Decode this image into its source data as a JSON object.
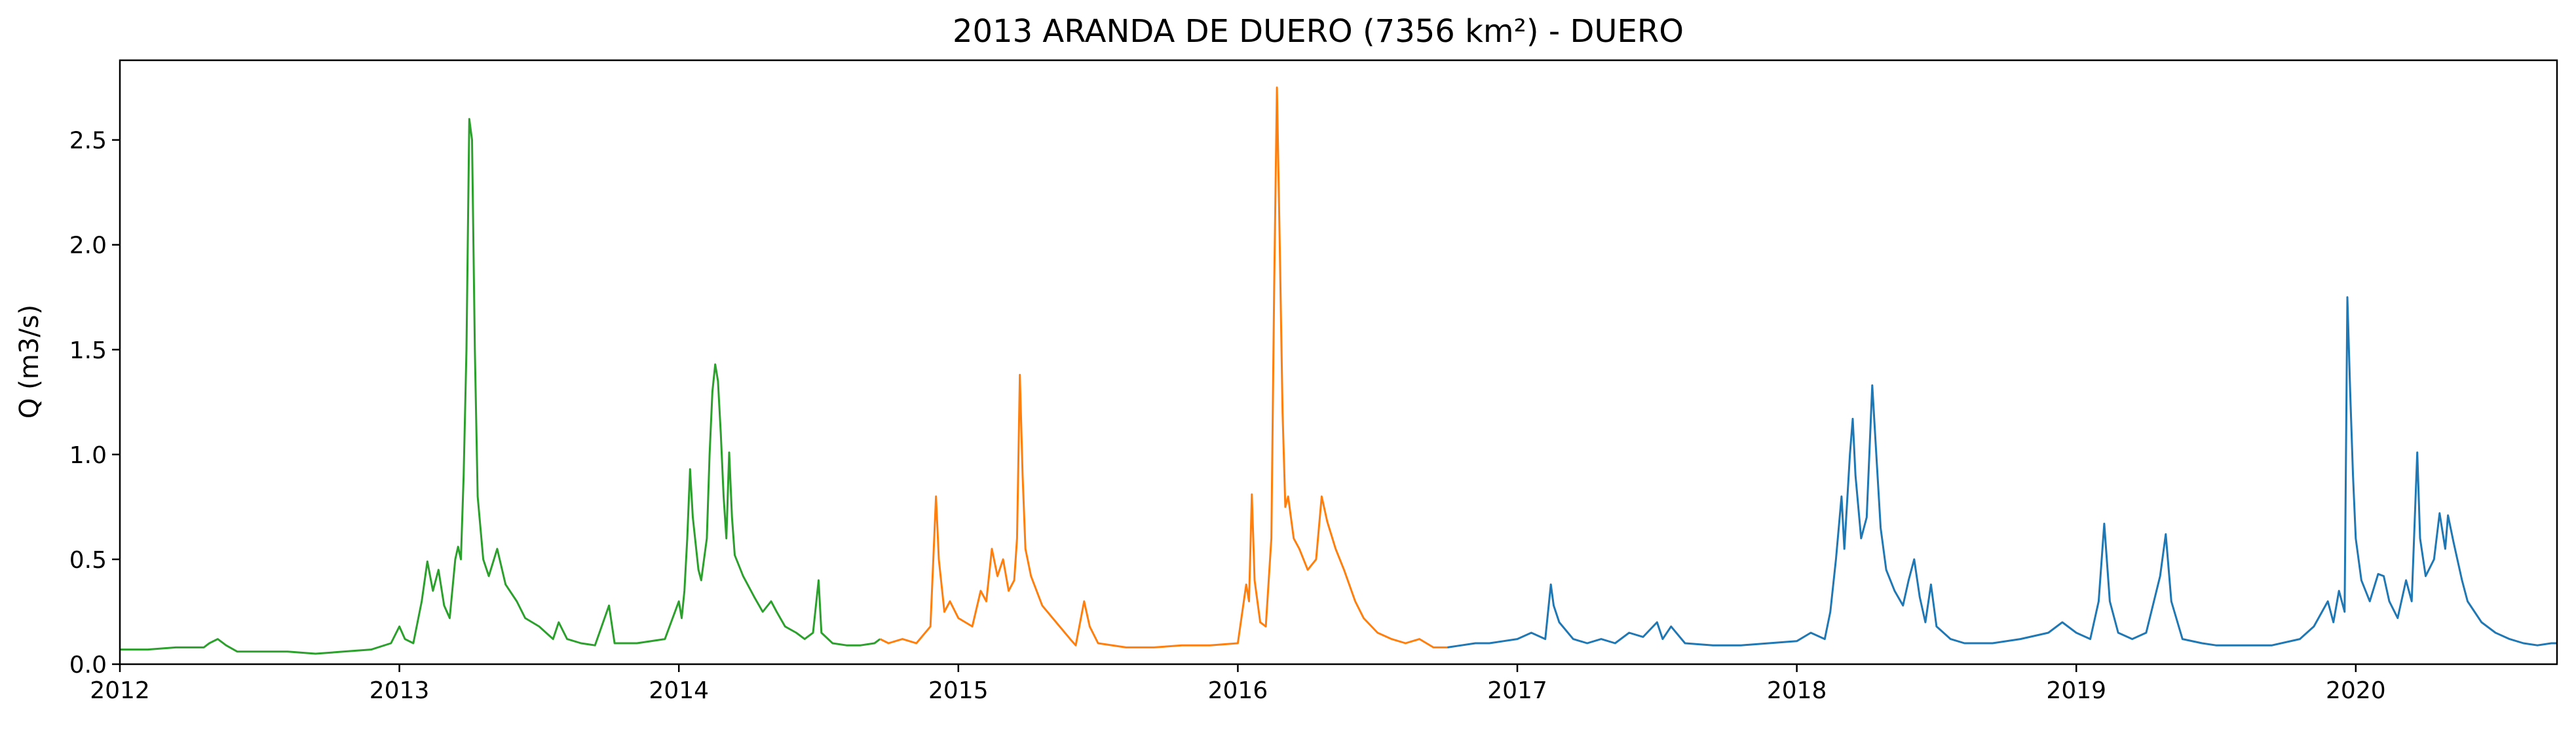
{
  "chart_data": {
    "type": "line",
    "title": "2013 ARANDA DE DUERO (7356 km²) - DUERO",
    "xlabel": "",
    "ylabel": "Q (m3/s)",
    "xlim": [
      2012.0,
      2020.72
    ],
    "ylim": [
      0.0,
      2.88
    ],
    "xticks": [
      2012,
      2013,
      2014,
      2015,
      2016,
      2017,
      2018,
      2019,
      2020
    ],
    "xtick_labels": [
      "2012",
      "2013",
      "2014",
      "2015",
      "2016",
      "2017",
      "2018",
      "2019",
      "2020"
    ],
    "yticks": [
      0.0,
      0.5,
      1.0,
      1.5,
      2.0,
      2.5
    ],
    "ytick_labels": [
      "0.0",
      "0.5",
      "1.0",
      "1.5",
      "2.0",
      "2.5"
    ],
    "grid": false,
    "legend": "none",
    "series": [
      {
        "color": "#2ca02c",
        "points": [
          [
            2012.0,
            0.07
          ],
          [
            2012.1,
            0.07
          ],
          [
            2012.2,
            0.08
          ],
          [
            2012.3,
            0.08
          ],
          [
            2012.32,
            0.1
          ],
          [
            2012.35,
            0.12
          ],
          [
            2012.38,
            0.09
          ],
          [
            2012.42,
            0.06
          ],
          [
            2012.5,
            0.06
          ],
          [
            2012.6,
            0.06
          ],
          [
            2012.7,
            0.05
          ],
          [
            2012.8,
            0.06
          ],
          [
            2012.9,
            0.07
          ],
          [
            2012.97,
            0.1
          ],
          [
            2013.0,
            0.18
          ],
          [
            2013.02,
            0.12
          ],
          [
            2013.05,
            0.1
          ],
          [
            2013.08,
            0.3
          ],
          [
            2013.1,
            0.49
          ],
          [
            2013.12,
            0.35
          ],
          [
            2013.14,
            0.45
          ],
          [
            2013.16,
            0.28
          ],
          [
            2013.18,
            0.22
          ],
          [
            2013.2,
            0.5
          ],
          [
            2013.21,
            0.56
          ],
          [
            2013.22,
            0.5
          ],
          [
            2013.23,
            0.9
          ],
          [
            2013.24,
            1.5
          ],
          [
            2013.25,
            2.6
          ],
          [
            2013.26,
            2.5
          ],
          [
            2013.27,
            1.5
          ],
          [
            2013.28,
            0.8
          ],
          [
            2013.3,
            0.5
          ],
          [
            2013.32,
            0.42
          ],
          [
            2013.35,
            0.55
          ],
          [
            2013.38,
            0.38
          ],
          [
            2013.42,
            0.3
          ],
          [
            2013.45,
            0.22
          ],
          [
            2013.5,
            0.18
          ],
          [
            2013.55,
            0.12
          ],
          [
            2013.57,
            0.2
          ],
          [
            2013.6,
            0.12
          ],
          [
            2013.65,
            0.1
          ],
          [
            2013.7,
            0.09
          ],
          [
            2013.75,
            0.28
          ],
          [
            2013.77,
            0.1
          ],
          [
            2013.85,
            0.1
          ],
          [
            2013.95,
            0.12
          ],
          [
            2014.0,
            0.3
          ],
          [
            2014.01,
            0.22
          ],
          [
            2014.02,
            0.35
          ],
          [
            2014.03,
            0.6
          ],
          [
            2014.04,
            0.93
          ],
          [
            2014.05,
            0.7
          ],
          [
            2014.07,
            0.45
          ],
          [
            2014.08,
            0.4
          ],
          [
            2014.09,
            0.5
          ],
          [
            2014.1,
            0.6
          ],
          [
            2014.11,
            1.0
          ],
          [
            2014.12,
            1.3
          ],
          [
            2014.13,
            1.43
          ],
          [
            2014.14,
            1.35
          ],
          [
            2014.15,
            1.1
          ],
          [
            2014.16,
            0.8
          ],
          [
            2014.17,
            0.6
          ],
          [
            2014.18,
            1.01
          ],
          [
            2014.19,
            0.7
          ],
          [
            2014.2,
            0.52
          ],
          [
            2014.23,
            0.42
          ],
          [
            2014.27,
            0.32
          ],
          [
            2014.3,
            0.25
          ],
          [
            2014.33,
            0.3
          ],
          [
            2014.35,
            0.25
          ],
          [
            2014.38,
            0.18
          ],
          [
            2014.42,
            0.15
          ],
          [
            2014.45,
            0.12
          ],
          [
            2014.48,
            0.15
          ],
          [
            2014.5,
            0.4
          ],
          [
            2014.51,
            0.15
          ],
          [
            2014.55,
            0.1
          ],
          [
            2014.6,
            0.09
          ],
          [
            2014.65,
            0.09
          ],
          [
            2014.7,
            0.1
          ],
          [
            2014.72,
            0.12
          ]
        ]
      },
      {
        "color": "#ff7f0e",
        "points": [
          [
            2014.72,
            0.12
          ],
          [
            2014.75,
            0.1
          ],
          [
            2014.8,
            0.12
          ],
          [
            2014.85,
            0.1
          ],
          [
            2014.9,
            0.18
          ],
          [
            2014.92,
            0.8
          ],
          [
            2014.93,
            0.5
          ],
          [
            2014.95,
            0.25
          ],
          [
            2014.97,
            0.3
          ],
          [
            2015.0,
            0.22
          ],
          [
            2015.05,
            0.18
          ],
          [
            2015.08,
            0.35
          ],
          [
            2015.1,
            0.3
          ],
          [
            2015.12,
            0.55
          ],
          [
            2015.14,
            0.42
          ],
          [
            2015.16,
            0.5
          ],
          [
            2015.18,
            0.35
          ],
          [
            2015.2,
            0.4
          ],
          [
            2015.21,
            0.6
          ],
          [
            2015.22,
            1.38
          ],
          [
            2015.23,
            0.9
          ],
          [
            2015.24,
            0.55
          ],
          [
            2015.26,
            0.42
          ],
          [
            2015.3,
            0.28
          ],
          [
            2015.35,
            0.2
          ],
          [
            2015.4,
            0.12
          ],
          [
            2015.42,
            0.09
          ],
          [
            2015.45,
            0.3
          ],
          [
            2015.47,
            0.18
          ],
          [
            2015.5,
            0.1
          ],
          [
            2015.6,
            0.08
          ],
          [
            2015.7,
            0.08
          ],
          [
            2015.8,
            0.09
          ],
          [
            2015.9,
            0.09
          ],
          [
            2016.0,
            0.1
          ],
          [
            2016.03,
            0.38
          ],
          [
            2016.04,
            0.3
          ],
          [
            2016.05,
            0.81
          ],
          [
            2016.06,
            0.4
          ],
          [
            2016.08,
            0.2
          ],
          [
            2016.1,
            0.18
          ],
          [
            2016.12,
            0.6
          ],
          [
            2016.13,
            1.8
          ],
          [
            2016.14,
            2.75
          ],
          [
            2016.15,
            2.0
          ],
          [
            2016.16,
            1.2
          ],
          [
            2016.17,
            0.75
          ],
          [
            2016.18,
            0.8
          ],
          [
            2016.2,
            0.6
          ],
          [
            2016.22,
            0.55
          ],
          [
            2016.25,
            0.45
          ],
          [
            2016.28,
            0.5
          ],
          [
            2016.3,
            0.8
          ],
          [
            2016.32,
            0.68
          ],
          [
            2016.35,
            0.55
          ],
          [
            2016.38,
            0.45
          ],
          [
            2016.42,
            0.3
          ],
          [
            2016.45,
            0.22
          ],
          [
            2016.5,
            0.15
          ],
          [
            2016.55,
            0.12
          ],
          [
            2016.6,
            0.1
          ],
          [
            2016.65,
            0.12
          ],
          [
            2016.7,
            0.08
          ],
          [
            2016.75,
            0.08
          ]
        ]
      },
      {
        "color": "#1f77b4",
        "points": [
          [
            2016.75,
            0.08
          ],
          [
            2016.8,
            0.09
          ],
          [
            2016.85,
            0.1
          ],
          [
            2016.9,
            0.1
          ],
          [
            2016.95,
            0.11
          ],
          [
            2017.0,
            0.12
          ],
          [
            2017.05,
            0.15
          ],
          [
            2017.1,
            0.12
          ],
          [
            2017.12,
            0.38
          ],
          [
            2017.13,
            0.28
          ],
          [
            2017.15,
            0.2
          ],
          [
            2017.2,
            0.12
          ],
          [
            2017.25,
            0.1
          ],
          [
            2017.3,
            0.12
          ],
          [
            2017.35,
            0.1
          ],
          [
            2017.4,
            0.15
          ],
          [
            2017.45,
            0.13
          ],
          [
            2017.5,
            0.2
          ],
          [
            2017.52,
            0.12
          ],
          [
            2017.55,
            0.18
          ],
          [
            2017.6,
            0.1
          ],
          [
            2017.7,
            0.09
          ],
          [
            2017.8,
            0.09
          ],
          [
            2017.9,
            0.1
          ],
          [
            2018.0,
            0.11
          ],
          [
            2018.05,
            0.15
          ],
          [
            2018.1,
            0.12
          ],
          [
            2018.12,
            0.25
          ],
          [
            2018.14,
            0.5
          ],
          [
            2018.16,
            0.8
          ],
          [
            2018.17,
            0.55
          ],
          [
            2018.19,
            1.0
          ],
          [
            2018.2,
            1.17
          ],
          [
            2018.21,
            0.9
          ],
          [
            2018.23,
            0.6
          ],
          [
            2018.25,
            0.7
          ],
          [
            2018.27,
            1.33
          ],
          [
            2018.28,
            1.1
          ],
          [
            2018.3,
            0.65
          ],
          [
            2018.32,
            0.45
          ],
          [
            2018.35,
            0.35
          ],
          [
            2018.38,
            0.28
          ],
          [
            2018.4,
            0.4
          ],
          [
            2018.42,
            0.5
          ],
          [
            2018.44,
            0.32
          ],
          [
            2018.46,
            0.2
          ],
          [
            2018.48,
            0.38
          ],
          [
            2018.5,
            0.18
          ],
          [
            2018.55,
            0.12
          ],
          [
            2018.6,
            0.1
          ],
          [
            2018.7,
            0.1
          ],
          [
            2018.8,
            0.12
          ],
          [
            2018.9,
            0.15
          ],
          [
            2018.95,
            0.2
          ],
          [
            2019.0,
            0.15
          ],
          [
            2019.05,
            0.12
          ],
          [
            2019.08,
            0.3
          ],
          [
            2019.1,
            0.67
          ],
          [
            2019.12,
            0.3
          ],
          [
            2019.15,
            0.15
          ],
          [
            2019.2,
            0.12
          ],
          [
            2019.25,
            0.15
          ],
          [
            2019.3,
            0.42
          ],
          [
            2019.32,
            0.62
          ],
          [
            2019.34,
            0.3
          ],
          [
            2019.38,
            0.12
          ],
          [
            2019.45,
            0.1
          ],
          [
            2019.5,
            0.09
          ],
          [
            2019.6,
            0.09
          ],
          [
            2019.7,
            0.09
          ],
          [
            2019.8,
            0.12
          ],
          [
            2019.85,
            0.18
          ],
          [
            2019.9,
            0.3
          ],
          [
            2019.92,
            0.2
          ],
          [
            2019.94,
            0.35
          ],
          [
            2019.96,
            0.25
          ],
          [
            2019.97,
            1.75
          ],
          [
            2019.98,
            1.3
          ],
          [
            2019.99,
            0.9
          ],
          [
            2020.0,
            0.6
          ],
          [
            2020.02,
            0.4
          ],
          [
            2020.05,
            0.3
          ],
          [
            2020.08,
            0.43
          ],
          [
            2020.1,
            0.42
          ],
          [
            2020.12,
            0.3
          ],
          [
            2020.15,
            0.22
          ],
          [
            2020.18,
            0.4
          ],
          [
            2020.2,
            0.3
          ],
          [
            2020.22,
            1.01
          ],
          [
            2020.23,
            0.6
          ],
          [
            2020.25,
            0.42
          ],
          [
            2020.28,
            0.5
          ],
          [
            2020.3,
            0.72
          ],
          [
            2020.32,
            0.55
          ],
          [
            2020.33,
            0.71
          ],
          [
            2020.35,
            0.58
          ],
          [
            2020.38,
            0.4
          ],
          [
            2020.4,
            0.3
          ],
          [
            2020.45,
            0.2
          ],
          [
            2020.5,
            0.15
          ],
          [
            2020.55,
            0.12
          ],
          [
            2020.6,
            0.1
          ],
          [
            2020.65,
            0.09
          ],
          [
            2020.7,
            0.1
          ],
          [
            2020.72,
            0.1
          ]
        ]
      }
    ]
  }
}
